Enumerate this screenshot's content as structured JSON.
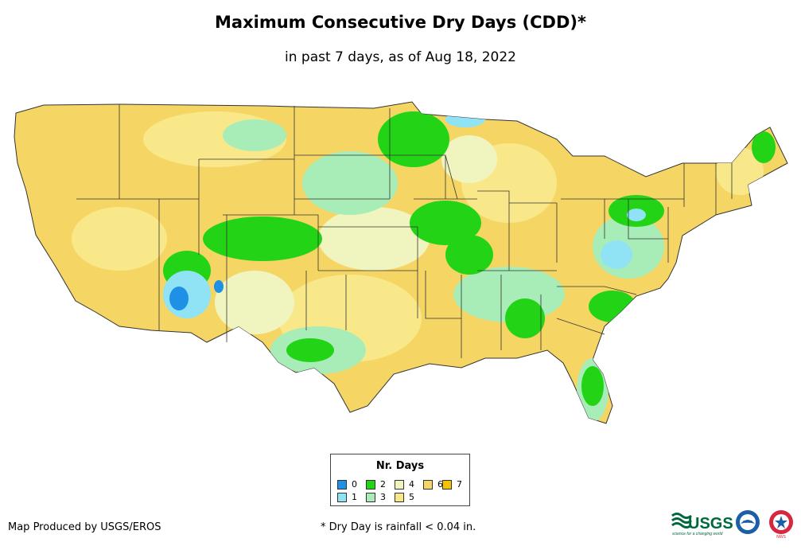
{
  "title": "Maximum Consecutive Dry Days (CDD)*",
  "subtitle": "in past 7 days, as of Aug 18, 2022",
  "legend": {
    "title": "Nr. Days",
    "items": [
      {
        "label": "0",
        "color": "#1E90E6"
      },
      {
        "label": "1",
        "color": "#8FE3F5"
      },
      {
        "label": "2",
        "color": "#22D316"
      },
      {
        "label": "3",
        "color": "#A8EDB8"
      },
      {
        "label": "4",
        "color": "#F0F5C0"
      },
      {
        "label": "5",
        "color": "#F8E88A"
      },
      {
        "label": "6",
        "color": "#F5D665"
      },
      {
        "label": "7",
        "color": "#F5C200"
      }
    ]
  },
  "footer": {
    "producer": "Map Produced by USGS/EROS",
    "footnote": "* Dry Day is rainfall < 0.04 in."
  },
  "logos": {
    "usgs": "USGS",
    "usgs_tagline": "science for a changing world",
    "noaa": "noaa",
    "nws": "NWS"
  }
}
